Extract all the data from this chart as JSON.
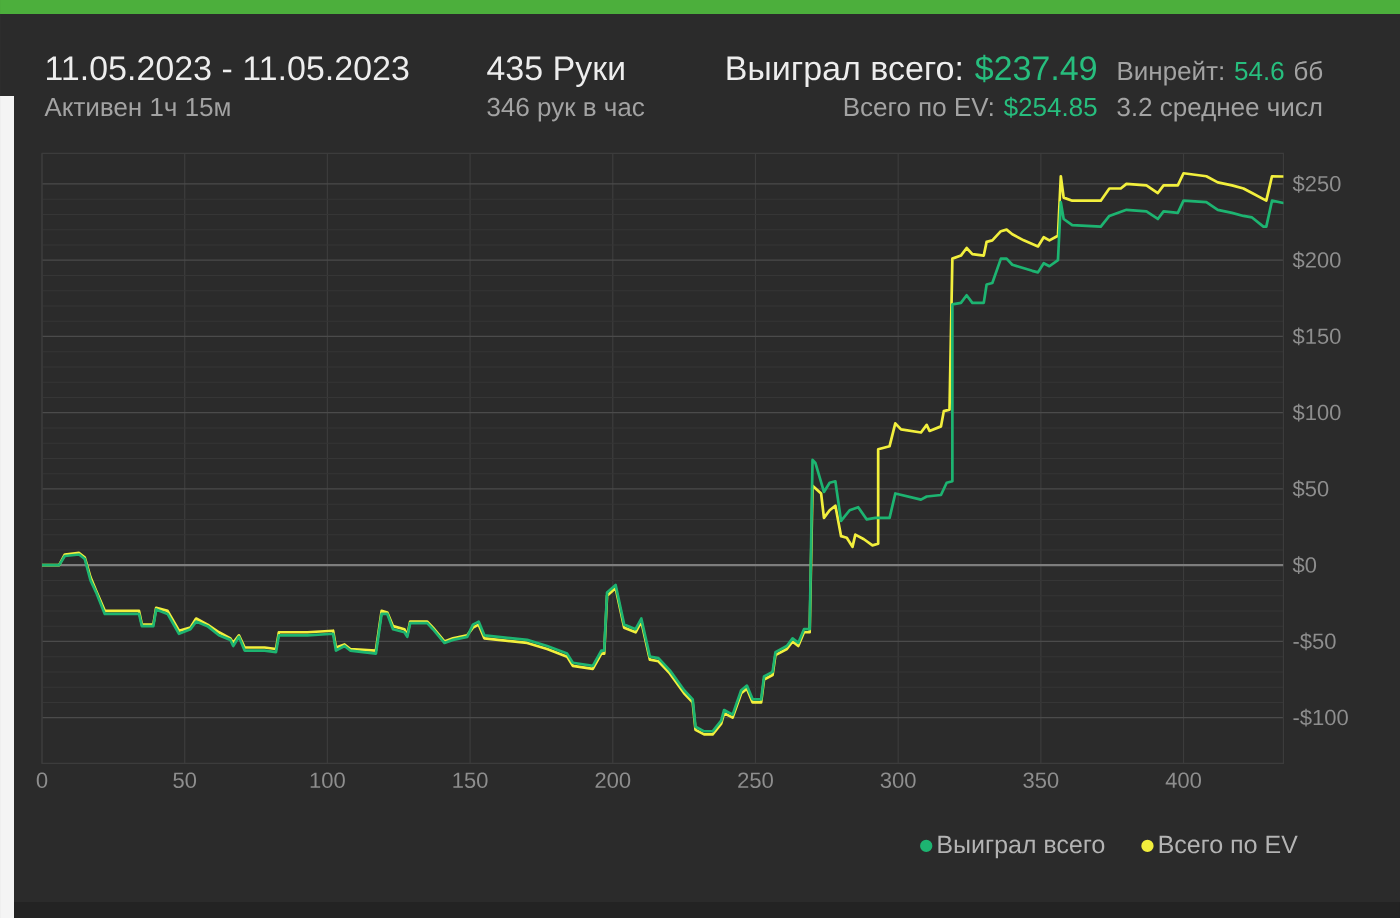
{
  "chart_data": {
    "type": "line",
    "title": "11.05.2023 - 11.05.2023",
    "subtitle": "Активен 1ч 15м",
    "annotations": [
      "435 Руки",
      "346 рук в час",
      "Выиграл всего:",
      "$237.49",
      "Всего по EV:",
      "$254.85",
      "Винрейт:",
      "54.6",
      "бб",
      "3.2 среднее числ"
    ],
    "xlim": [
      0,
      435
    ],
    "ylim": [
      -130,
      270
    ],
    "xticks": [
      0,
      50,
      100,
      150,
      200,
      250,
      300,
      350,
      400
    ],
    "yticks": [
      {
        "value": -100,
        "label": "-$100"
      },
      {
        "value": -50,
        "label": "-$50"
      },
      {
        "value": 0,
        "label": "$0"
      },
      {
        "value": 50,
        "label": "$50"
      },
      {
        "value": 100,
        "label": "$100"
      },
      {
        "value": 150,
        "label": "$150"
      },
      {
        "value": 200,
        "label": "$200"
      },
      {
        "value": 250,
        "label": "$250"
      }
    ],
    "grid": true,
    "legend": "bottom right",
    "ref_lines": [
      {
        "axis": "y",
        "value": 0,
        "color": "#7e7e7e"
      }
    ],
    "series": [
      {
        "name": "Выиграл всего",
        "color": "#1db471",
        "x": [
          0,
          6,
          8,
          13,
          15,
          17,
          19,
          22,
          34,
          35,
          39,
          40,
          44,
          48,
          52,
          54,
          58,
          62,
          66,
          67,
          69,
          71,
          78,
          82,
          83,
          93,
          102,
          103,
          106,
          108,
          117,
          119,
          121,
          123,
          127,
          128,
          129,
          135,
          137,
          141,
          144,
          149,
          151,
          153,
          155,
          170,
          177,
          184,
          186,
          193,
          196,
          197,
          198,
          201,
          204,
          208,
          210,
          213,
          216,
          220,
          225,
          228,
          229,
          232,
          235,
          238,
          239,
          242,
          245,
          247,
          249,
          252,
          253,
          256,
          257,
          261,
          263,
          265,
          267,
          269,
          270,
          271,
          274,
          276,
          278,
          280,
          283,
          286,
          289,
          292,
          297,
          299,
          308,
          310,
          315,
          317,
          319,
          319,
          322,
          324,
          326,
          330,
          331,
          333,
          336,
          338,
          340,
          347,
          349,
          351,
          353,
          356,
          357,
          358,
          361,
          371,
          374,
          380,
          387,
          391,
          393,
          398,
          400,
          408,
          412,
          417,
          421,
          424,
          428,
          429,
          431,
          435
        ],
        "values": [
          0,
          0,
          6,
          7,
          4,
          -10,
          -18,
          -32,
          -32,
          -40,
          -40,
          -29,
          -32,
          -45,
          -42,
          -37,
          -40,
          -46,
          -49,
          -53,
          -47,
          -56,
          -56,
          -57,
          -46,
          -46,
          -45,
          -56,
          -53,
          -56,
          -58,
          -32,
          -32,
          -42,
          -44,
          -47,
          -38,
          -38,
          -42,
          -51,
          -49,
          -47,
          -39,
          -37,
          -46,
          -49,
          -53,
          -58,
          -64,
          -66,
          -56,
          -56,
          -18,
          -13,
          -39,
          -42,
          -35,
          -60,
          -61,
          -69,
          -82,
          -88,
          -106,
          -109,
          -109,
          -102,
          -95,
          -98,
          -82,
          -79,
          -88,
          -88,
          -73,
          -70,
          -57,
          -53,
          -48,
          -51,
          -42,
          -42,
          69,
          67,
          48,
          54,
          55,
          29,
          36,
          38,
          30,
          31,
          31,
          47,
          43,
          45,
          46,
          54,
          55,
          171,
          172,
          177,
          172,
          172,
          184,
          185,
          201,
          201,
          197,
          193,
          192,
          198,
          196,
          200,
          238,
          227,
          223,
          222,
          229,
          233,
          232,
          227,
          232,
          231,
          239,
          238,
          233,
          231,
          229,
          228,
          222,
          222,
          239,
          237.49
        ]
      },
      {
        "name": "Всего по EV",
        "color": "#f2ef3d",
        "x": [
          0,
          6,
          8,
          13,
          15,
          17,
          19,
          22,
          34,
          35,
          39,
          40,
          44,
          48,
          52,
          54,
          58,
          62,
          66,
          67,
          69,
          71,
          78,
          82,
          83,
          93,
          102,
          103,
          106,
          108,
          117,
          119,
          121,
          123,
          127,
          128,
          129,
          135,
          137,
          141,
          144,
          149,
          151,
          153,
          155,
          170,
          177,
          184,
          186,
          193,
          196,
          197,
          198,
          201,
          204,
          208,
          210,
          213,
          216,
          220,
          225,
          228,
          229,
          232,
          235,
          238,
          239,
          242,
          245,
          247,
          249,
          252,
          253,
          256,
          257,
          261,
          263,
          265,
          267,
          269,
          270,
          273,
          274,
          276,
          278,
          280,
          282,
          284,
          285,
          288,
          291,
          293,
          293,
          295,
          297,
          299,
          301,
          308,
          310,
          311,
          315,
          316,
          318,
          319,
          322,
          324,
          326,
          330,
          331,
          333,
          336,
          338,
          340,
          344,
          349,
          351,
          353,
          356,
          357,
          358,
          361,
          371,
          374,
          378,
          380,
          387,
          391,
          393,
          398,
          400,
          408,
          412,
          417,
          421,
          424,
          428,
          429,
          431,
          435
        ],
        "values": [
          0,
          0,
          7,
          8,
          5,
          -8,
          -17,
          -30,
          -30,
          -39,
          -39,
          -28,
          -30,
          -43,
          -41,
          -35,
          -39,
          -44,
          -48,
          -51,
          -46,
          -54,
          -54,
          -55,
          -44,
          -44,
          -43,
          -54,
          -52,
          -55,
          -56,
          -30,
          -31,
          -40,
          -42,
          -46,
          -37,
          -37,
          -41,
          -50,
          -48,
          -46,
          -41,
          -39,
          -48,
          -51,
          -55,
          -60,
          -66,
          -68,
          -58,
          -58,
          -20,
          -15,
          -41,
          -44,
          -37,
          -62,
          -63,
          -71,
          -84,
          -90,
          -108,
          -111,
          -111,
          -104,
          -97,
          -100,
          -84,
          -81,
          -90,
          -90,
          -75,
          -72,
          -59,
          -55,
          -50,
          -53,
          -44,
          -44,
          52,
          47,
          31,
          36,
          39,
          19,
          18,
          12,
          20,
          17,
          13,
          14,
          76,
          77,
          78,
          93,
          89,
          87,
          92,
          88,
          91,
          101,
          102,
          201,
          203,
          208,
          204,
          203,
          212,
          213,
          219,
          220,
          217,
          213,
          209,
          215,
          213,
          216,
          255,
          241,
          239,
          239,
          247,
          247,
          250,
          249,
          244,
          249,
          249,
          257,
          255,
          251,
          249,
          247,
          244,
          240,
          239,
          255,
          254.85
        ]
      }
    ]
  }
}
